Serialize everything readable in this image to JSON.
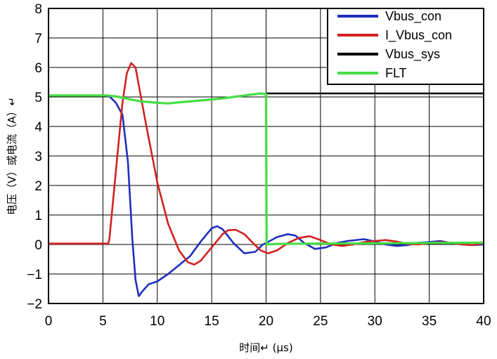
{
  "chart_data": {
    "type": "line",
    "xlabel": "时间↵ (μs)",
    "ylabel": "电压（V）或电流（A）↵",
    "xlim": [
      0,
      40
    ],
    "ylim": [
      -2,
      8
    ],
    "xticks": [
      "0",
      "5",
      "10",
      "15",
      "20",
      "25",
      "30",
      "35",
      "40"
    ],
    "yticks": [
      "−2",
      "−1",
      "0",
      "1",
      "2",
      "3",
      "4",
      "5",
      "6",
      "7",
      "8"
    ],
    "grid": true,
    "legend_position": "top-right",
    "series": [
      {
        "name": "Vbus_con",
        "color": "#1f2fbf",
        "x": [
          0,
          5,
          5.6,
          6.2,
          6.8,
          7.3,
          7.7,
          8.0,
          8.3,
          8.6,
          9.2,
          10,
          11,
          12,
          13,
          14,
          15,
          15.5,
          16,
          17,
          18,
          19,
          19.7,
          20,
          21,
          22,
          22.7,
          23.5,
          24.5,
          25.5,
          26.5,
          27.5,
          29,
          30,
          31,
          32,
          33,
          34,
          35,
          36,
          37,
          38,
          39,
          40
        ],
        "y": [
          5.05,
          5.05,
          5.02,
          4.8,
          4.4,
          2.8,
          0.2,
          -1.2,
          -1.75,
          -1.6,
          -1.35,
          -1.25,
          -1.0,
          -0.7,
          -0.4,
          0.1,
          0.55,
          0.62,
          0.52,
          0.05,
          -0.3,
          -0.25,
          0.0,
          0.05,
          0.25,
          0.35,
          0.3,
          0.05,
          -0.15,
          -0.1,
          0.05,
          0.12,
          0.18,
          0.1,
          0.0,
          -0.05,
          -0.02,
          0.06,
          0.08,
          0.12,
          0.05,
          0.0,
          -0.02,
          0.0
        ]
      },
      {
        "name": "I_Vbus_con",
        "color": "#d42020",
        "x": [
          0,
          5.5,
          5.6,
          6.2,
          6.8,
          7.2,
          7.6,
          8.0,
          8.5,
          9,
          10,
          11,
          12,
          12.8,
          13.4,
          14,
          15,
          16,
          16.5,
          17.2,
          18,
          18.8,
          19.5,
          20.2,
          21,
          22,
          23,
          24,
          25,
          26,
          27,
          28,
          29,
          30,
          31,
          32,
          33,
          34,
          35,
          36,
          37,
          38,
          39,
          40
        ],
        "y": [
          0.03,
          0.03,
          0.2,
          2.5,
          4.8,
          5.8,
          6.15,
          6.0,
          5.0,
          4.0,
          2.1,
          0.7,
          -0.2,
          -0.6,
          -0.68,
          -0.55,
          -0.1,
          0.35,
          0.48,
          0.5,
          0.35,
          0.05,
          -0.2,
          -0.3,
          -0.2,
          0.05,
          0.22,
          0.28,
          0.15,
          0.0,
          -0.05,
          0.0,
          0.08,
          0.12,
          0.15,
          0.1,
          0.02,
          0.0,
          0.05,
          0.08,
          0.06,
          0.0,
          -0.02,
          0.05
        ]
      },
      {
        "name": "Vbus_sys",
        "color": "#000000",
        "x": [
          20,
          40
        ],
        "y": [
          5.12,
          5.12
        ]
      },
      {
        "name": "FLT",
        "color": "#44dd44",
        "x": [
          0,
          5.5,
          6.5,
          7.5,
          8.5,
          10,
          11,
          12,
          14,
          16,
          18,
          19.5,
          20,
          20.05,
          21,
          25,
          30,
          35,
          40
        ],
        "y": [
          5.05,
          5.05,
          5.0,
          4.92,
          4.85,
          4.8,
          4.78,
          4.82,
          4.88,
          4.95,
          5.05,
          5.12,
          5.1,
          0.0,
          0.02,
          0.03,
          0.04,
          0.05,
          0.06
        ]
      }
    ]
  }
}
